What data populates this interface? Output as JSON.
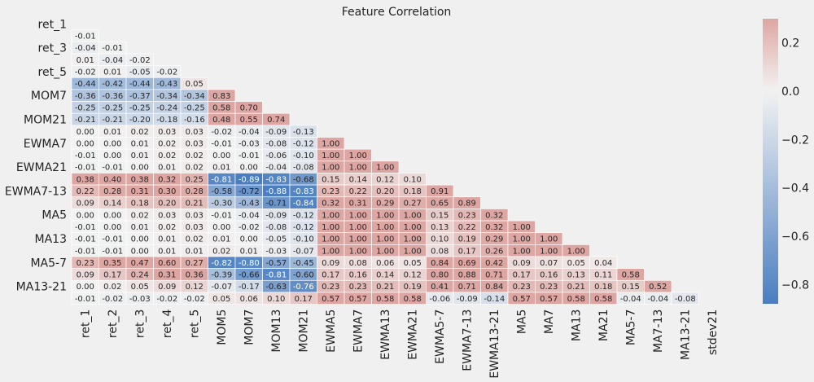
{
  "chart_data": {
    "type": "heatmap",
    "title": "Feature Correlation",
    "variables": [
      "ret_1",
      "ret_2",
      "ret_3",
      "ret_4",
      "ret_5",
      "MOM5",
      "MOM7",
      "MOM13",
      "MOM21",
      "EWMA5",
      "EWMA7",
      "EWMA13",
      "EWMA21",
      "EWMA5-7",
      "EWMA7-13",
      "EWMA13-21",
      "MA5",
      "MA7",
      "MA13",
      "MA21",
      "MA5-7",
      "MA7-13",
      "MA13-21",
      "stdev21"
    ],
    "x_tick_labels": [
      "ret_1",
      "ret_2",
      "ret_3",
      "ret_4",
      "ret_5",
      "MOM5",
      "MOM7",
      "MOM13",
      "MOM21",
      "EWMA5",
      "EWMA7",
      "EWMA13",
      "EWMA21",
      "EWMA5-7",
      "EWMA7-13",
      "EWMA13-21",
      "MA5",
      "MA7",
      "MA13",
      "MA21",
      "MA5-7",
      "MA7-13",
      "MA13-21",
      "stdev21"
    ],
    "y_tick_labels": [
      "ret_1",
      "",
      "ret_3",
      "",
      "ret_5",
      "",
      "MOM7",
      "",
      "MOM21",
      "",
      "EWMA7",
      "",
      "EWMA21",
      "",
      "EWMA7-13",
      "",
      "MA5",
      "",
      "MA13",
      "",
      "MA5-7",
      "",
      "MA13-21",
      ""
    ],
    "mask": "upper-triangle-including-diagonal",
    "lower_triangle": [
      [],
      [
        -0.01
      ],
      [
        -0.04,
        -0.01
      ],
      [
        0.01,
        -0.04,
        -0.02
      ],
      [
        -0.02,
        0.01,
        -0.05,
        -0.02
      ],
      [
        -0.44,
        -0.42,
        -0.44,
        -0.43,
        0.05
      ],
      [
        -0.36,
        -0.36,
        -0.37,
        -0.34,
        -0.34,
        0.83
      ],
      [
        -0.25,
        -0.25,
        -0.25,
        -0.24,
        -0.25,
        0.58,
        0.7
      ],
      [
        -0.21,
        -0.21,
        -0.2,
        -0.18,
        -0.16,
        0.48,
        0.55,
        0.74
      ],
      [
        0.0,
        0.01,
        0.02,
        0.03,
        0.03,
        -0.02,
        -0.04,
        -0.09,
        -0.13
      ],
      [
        -0.0,
        0.0,
        0.01,
        0.02,
        0.03,
        -0.01,
        -0.03,
        -0.08,
        -0.12,
        1.0
      ],
      [
        -0.01,
        -0.0,
        0.01,
        0.02,
        0.02,
        0.0,
        -0.01,
        -0.06,
        -0.1,
        1.0,
        1.0
      ],
      [
        -0.01,
        -0.01,
        0.0,
        0.01,
        0.02,
        0.01,
        -0.0,
        -0.04,
        -0.08,
        1.0,
        1.0,
        1.0
      ],
      [
        0.38,
        0.4,
        0.38,
        0.32,
        0.25,
        -0.81,
        -0.89,
        -0.83,
        -0.68,
        0.15,
        0.14,
        0.12,
        0.1
      ],
      [
        0.22,
        0.28,
        0.31,
        0.3,
        0.28,
        -0.58,
        -0.72,
        -0.88,
        -0.83,
        0.23,
        0.22,
        0.2,
        0.18,
        0.91
      ],
      [
        0.09,
        0.14,
        0.18,
        0.2,
        0.21,
        -0.3,
        -0.43,
        -0.71,
        -0.84,
        0.32,
        0.31,
        0.29,
        0.27,
        0.65,
        0.89
      ],
      [
        -0.0,
        0.0,
        0.02,
        0.03,
        0.03,
        -0.01,
        -0.04,
        -0.09,
        -0.12,
        1.0,
        1.0,
        1.0,
        1.0,
        0.15,
        0.23,
        0.32
      ],
      [
        -0.01,
        -0.0,
        0.01,
        0.02,
        0.03,
        0.0,
        -0.02,
        -0.08,
        -0.12,
        1.0,
        1.0,
        1.0,
        1.0,
        0.13,
        0.22,
        0.32,
        1.0
      ],
      [
        -0.01,
        -0.01,
        0.0,
        0.01,
        0.02,
        0.01,
        -0.0,
        -0.05,
        -0.1,
        1.0,
        1.0,
        1.0,
        1.0,
        0.1,
        0.19,
        0.29,
        1.0,
        1.0
      ],
      [
        -0.01,
        -0.01,
        -0.0,
        0.01,
        0.01,
        0.02,
        0.01,
        -0.03,
        -0.07,
        1.0,
        1.0,
        1.0,
        1.0,
        0.08,
        0.17,
        0.26,
        1.0,
        1.0,
        1.0
      ],
      [
        0.23,
        0.35,
        0.47,
        0.6,
        0.27,
        -0.82,
        -0.8,
        -0.57,
        -0.45,
        0.09,
        0.08,
        0.06,
        0.05,
        0.84,
        0.69,
        0.42,
        0.09,
        0.07,
        0.05,
        0.04
      ],
      [
        0.09,
        0.17,
        0.24,
        0.31,
        0.36,
        -0.39,
        -0.66,
        -0.81,
        -0.6,
        0.17,
        0.16,
        0.14,
        0.12,
        0.8,
        0.88,
        0.71,
        0.17,
        0.16,
        0.13,
        0.11,
        0.58
      ],
      [
        -0.0,
        0.02,
        0.05,
        0.09,
        0.12,
        -0.07,
        -0.17,
        -0.63,
        -0.76,
        0.23,
        0.23,
        0.21,
        0.19,
        0.41,
        0.71,
        0.84,
        0.23,
        0.23,
        0.21,
        0.18,
        0.15,
        0.52
      ],
      [
        -0.01,
        -0.02,
        -0.03,
        -0.02,
        -0.02,
        0.05,
        0.06,
        0.1,
        0.17,
        0.57,
        0.57,
        0.58,
        0.58,
        -0.06,
        -0.09,
        -0.14,
        0.57,
        0.57,
        0.58,
        0.58,
        -0.04,
        -0.04,
        -0.08
      ]
    ],
    "colorscale": {
      "min": -0.88,
      "max": 0.3,
      "center": 0,
      "negative_color": "#4a7ec0",
      "center_color": "#f2f2f2",
      "positive_color": "#dea6a2",
      "ticks": [
        0.2,
        0.0,
        -0.2,
        -0.4,
        -0.6,
        -0.8
      ],
      "tick_labels": [
        "0.2",
        "0.0",
        "−0.2",
        "−0.4",
        "−0.6",
        "−0.8"
      ]
    },
    "legend": "colorbar-right",
    "grid": false
  }
}
